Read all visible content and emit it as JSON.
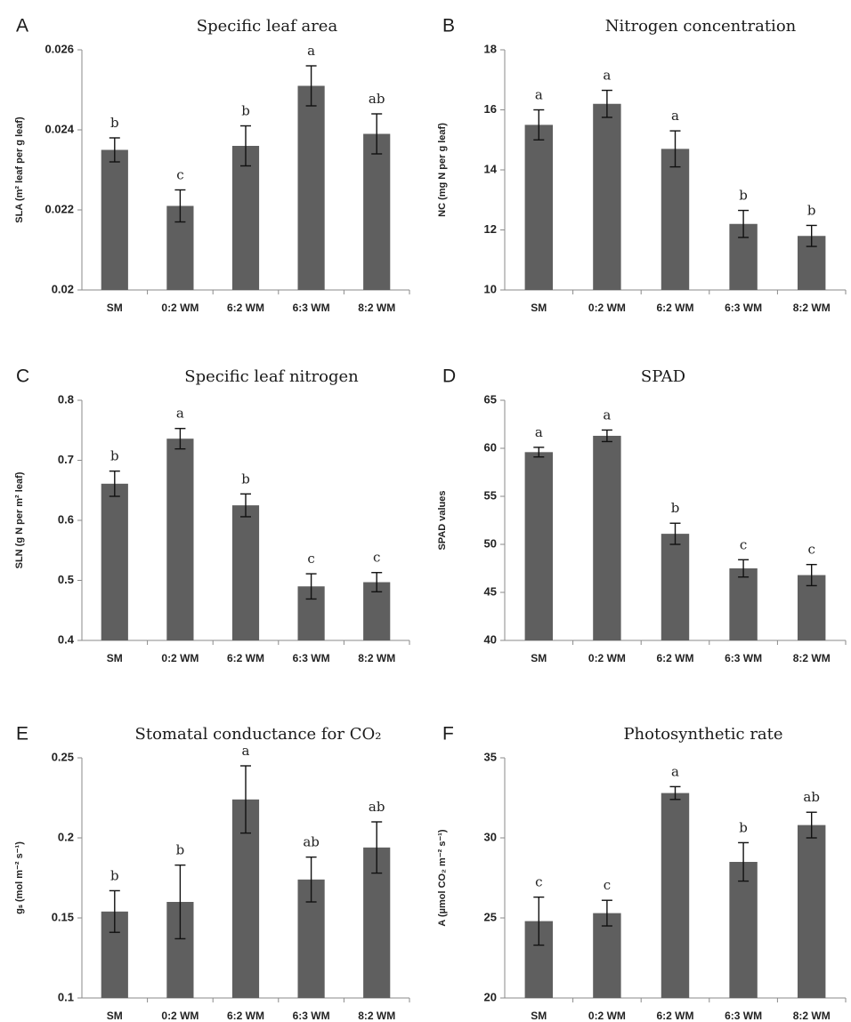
{
  "chart_data": [
    {
      "letter": "A",
      "type": "bar",
      "title": "Specific leaf area",
      "ylabel": "SLA (m² leaf per g leaf)",
      "categories": [
        "SM",
        "0:2 WM",
        "6:2 WM",
        "6:3 WM",
        "8:2 WM"
      ],
      "values": [
        0.0235,
        0.0221,
        0.0236,
        0.0251,
        0.0239
      ],
      "errors": [
        0.0003,
        0.0004,
        0.0005,
        0.0005,
        0.0005
      ],
      "significance": [
        "b",
        "c",
        "b",
        "a",
        "ab"
      ],
      "yticks": [
        "0.02",
        "0.022",
        "0.024",
        "0.026"
      ],
      "ylim": [
        0.02,
        0.026
      ]
    },
    {
      "letter": "B",
      "type": "bar",
      "title": "Nitrogen concentration",
      "ylabel": "NC (mg N per g leaf)",
      "categories": [
        "SM",
        "0:2 WM",
        "6:2 WM",
        "6:3 WM",
        "8:2 WM"
      ],
      "values": [
        15.5,
        16.2,
        14.7,
        12.2,
        11.8
      ],
      "errors": [
        0.5,
        0.45,
        0.6,
        0.45,
        0.35
      ],
      "significance": [
        "a",
        "a",
        "a",
        "b",
        "b"
      ],
      "yticks": [
        "10",
        "12",
        "14",
        "16",
        "18"
      ],
      "ylim": [
        10,
        18
      ]
    },
    {
      "letter": "C",
      "type": "bar",
      "title": "Specific leaf nitrogen",
      "ylabel": "SLN (g N per m² leaf)",
      "categories": [
        "SM",
        "0:2 WM",
        "6:2 WM",
        "6:3 WM",
        "8:2 WM"
      ],
      "values": [
        0.661,
        0.736,
        0.625,
        0.49,
        0.497
      ],
      "errors": [
        0.021,
        0.017,
        0.019,
        0.021,
        0.016
      ],
      "significance": [
        "b",
        "a",
        "b",
        "c",
        "c"
      ],
      "yticks": [
        "0.4",
        "0.5",
        "0.6",
        "0.7",
        "0.8"
      ],
      "ylim": [
        0.4,
        0.8
      ]
    },
    {
      "letter": "D",
      "type": "bar",
      "title": "SPAD",
      "ylabel": "SPAD values",
      "categories": [
        "SM",
        "0:2 WM",
        "6:2 WM",
        "6:3 WM",
        "8:2 WM"
      ],
      "values": [
        59.6,
        61.3,
        51.1,
        47.5,
        46.8
      ],
      "errors": [
        0.5,
        0.6,
        1.1,
        0.9,
        1.1
      ],
      "significance": [
        "a",
        "a",
        "b",
        "c",
        "c"
      ],
      "yticks": [
        "40",
        "45",
        "50",
        "55",
        "60",
        "65"
      ],
      "ylim": [
        40,
        65
      ]
    },
    {
      "letter": "E",
      "type": "bar",
      "title": "Stomatal conductance for CO₂",
      "ylabel": "gₛ (mol m⁻² s⁻¹)",
      "categories": [
        "SM",
        "0:2 WM",
        "6:2 WM",
        "6:3 WM",
        "8:2 WM"
      ],
      "values": [
        0.154,
        0.16,
        0.224,
        0.174,
        0.194
      ],
      "errors": [
        0.013,
        0.023,
        0.021,
        0.014,
        0.016
      ],
      "significance": [
        "b",
        "b",
        "a",
        "ab",
        "ab"
      ],
      "yticks": [
        "0.1",
        "0.15",
        "0.2",
        "0.25"
      ],
      "ylim": [
        0.1,
        0.25
      ]
    },
    {
      "letter": "F",
      "type": "bar",
      "title": "Photosynthetic rate",
      "ylabel": "A (µmol CO₂ m⁻² s⁻¹)",
      "categories": [
        "SM",
        "0:2 WM",
        "6:2 WM",
        "6:3 WM",
        "8:2 WM"
      ],
      "values": [
        24.8,
        25.3,
        32.8,
        28.5,
        30.8
      ],
      "errors": [
        1.5,
        0.8,
        0.4,
        1.2,
        0.8
      ],
      "significance": [
        "c",
        "c",
        "a",
        "b",
        "ab"
      ],
      "yticks": [
        "20",
        "25",
        "30",
        "35"
      ],
      "ylim": [
        20,
        35
      ]
    }
  ]
}
